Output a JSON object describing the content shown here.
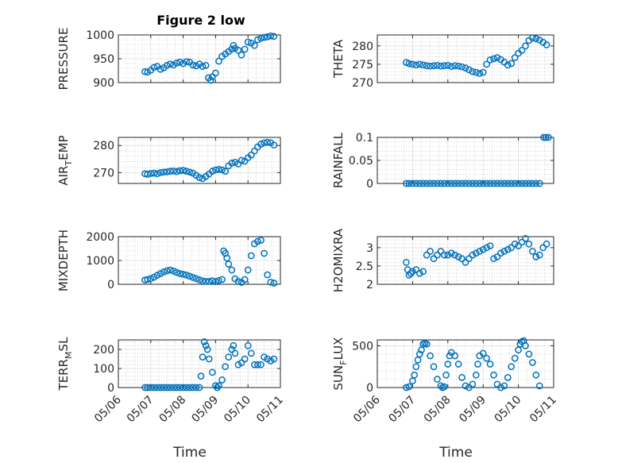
{
  "figure_title": "Figure 2 low",
  "marker_color": "#0072bd",
  "chart_data": [
    {
      "type": "scatter",
      "ylabel": "PRESSURE",
      "ylabel_sub": "",
      "ylabel_tail": "",
      "xlabel": "",
      "xticks": [
        "05/06",
        "05/07",
        "05/08",
        "05/09",
        "05/10",
        "05/11"
      ],
      "show_xticklabels": false,
      "ylim": [
        900,
        1000
      ],
      "yticks": [
        "900",
        "950",
        "1000"
      ],
      "ytick_values": [
        900,
        950,
        1000
      ],
      "grid": true,
      "x": [
        0.82,
        0.9,
        1.0,
        1.1,
        1.2,
        1.3,
        1.4,
        1.5,
        1.6,
        1.7,
        1.8,
        1.9,
        2.0,
        2.1,
        2.2,
        2.3,
        2.4,
        2.5,
        2.6,
        2.7,
        2.78,
        2.85,
        2.9,
        3.0,
        3.1,
        3.2,
        3.3,
        3.4,
        3.5,
        3.55,
        3.6,
        3.7,
        3.8,
        3.9,
        4.0,
        4.1,
        4.2,
        4.3,
        4.4,
        4.5,
        4.6,
        4.7,
        4.8
      ],
      "y": [
        923,
        922,
        926,
        932,
        934,
        928,
        931,
        936,
        939,
        937,
        941,
        943,
        940,
        944,
        943,
        937,
        935,
        939,
        934,
        936,
        910,
        905,
        912,
        920,
        945,
        955,
        960,
        965,
        970,
        978,
        972,
        968,
        958,
        970,
        985,
        983,
        978,
        990,
        993,
        995,
        996,
        998,
        997
      ]
    },
    {
      "type": "scatter",
      "ylabel": "THETA",
      "ylabel_sub": "",
      "ylabel_tail": "",
      "xlabel": "",
      "xticks": [
        "05/06",
        "05/07",
        "05/08",
        "05/09",
        "05/10",
        "05/11"
      ],
      "show_xticklabels": false,
      "ylim": [
        270,
        283
      ],
      "yticks": [
        "270",
        "275",
        "280"
      ],
      "ytick_values": [
        270,
        275,
        280
      ],
      "grid": true,
      "x": [
        0.82,
        0.9,
        1.0,
        1.1,
        1.2,
        1.3,
        1.4,
        1.5,
        1.6,
        1.7,
        1.8,
        1.9,
        2.0,
        2.1,
        2.2,
        2.3,
        2.4,
        2.5,
        2.6,
        2.7,
        2.8,
        2.9,
        3.0,
        3.1,
        3.2,
        3.3,
        3.4,
        3.5,
        3.6,
        3.7,
        3.8,
        3.9,
        4.0,
        4.1,
        4.2,
        4.3,
        4.4,
        4.5,
        4.6,
        4.7,
        4.8
      ],
      "y": [
        275.5,
        275.2,
        275.0,
        274.8,
        275.0,
        274.8,
        274.6,
        274.5,
        274.6,
        274.7,
        274.5,
        274.6,
        274.7,
        274.4,
        274.6,
        274.5,
        274.3,
        274.0,
        273.5,
        273.0,
        272.8,
        272.5,
        272.8,
        275.0,
        276.2,
        276.5,
        276.8,
        276.3,
        275.6,
        274.8,
        275.2,
        276.8,
        278.0,
        278.8,
        280.0,
        281.5,
        282.2,
        282.0,
        281.6,
        281.0,
        280.3
      ]
    },
    {
      "type": "scatter",
      "ylabel": "AIR",
      "ylabel_sub": "T",
      "ylabel_tail": "EMP",
      "xlabel": "",
      "xticks": [
        "05/06",
        "05/07",
        "05/08",
        "05/09",
        "05/10",
        "05/11"
      ],
      "show_xticklabels": false,
      "ylim": [
        266,
        283
      ],
      "yticks": [
        "270",
        "280"
      ],
      "ytick_values": [
        270,
        280
      ],
      "grid": true,
      "x": [
        0.82,
        0.9,
        1.0,
        1.1,
        1.2,
        1.3,
        1.4,
        1.5,
        1.6,
        1.7,
        1.8,
        1.9,
        2.0,
        2.1,
        2.2,
        2.3,
        2.4,
        2.5,
        2.6,
        2.7,
        2.8,
        2.9,
        3.0,
        3.1,
        3.2,
        3.3,
        3.4,
        3.5,
        3.6,
        3.7,
        3.8,
        3.9,
        4.0,
        4.1,
        4.2,
        4.3,
        4.4,
        4.5,
        4.6,
        4.7,
        4.8
      ],
      "y": [
        269.6,
        269.4,
        269.7,
        269.8,
        269.6,
        270.0,
        270.2,
        270.3,
        270.5,
        270.6,
        270.4,
        270.7,
        270.8,
        270.5,
        270.2,
        269.8,
        269.0,
        268.2,
        267.8,
        268.6,
        269.5,
        270.5,
        271.0,
        271.2,
        271.0,
        270.5,
        272.5,
        273.5,
        273.8,
        273.2,
        274.5,
        274.2,
        275.5,
        276.5,
        278.0,
        279.5,
        280.5,
        281.0,
        281.2,
        281.0,
        280.2
      ]
    },
    {
      "type": "scatter",
      "ylabel": "RAINFALL",
      "ylabel_sub": "",
      "ylabel_tail": "",
      "xlabel": "",
      "xticks": [
        "05/06",
        "05/07",
        "05/08",
        "05/09",
        "05/10",
        "05/11"
      ],
      "show_xticklabels": false,
      "ylim": [
        0,
        0.1
      ],
      "yticks": [
        "0",
        "0.05",
        "0.1"
      ],
      "ytick_values": [
        0,
        0.05,
        0.1
      ],
      "grid": true,
      "x": [
        0.82,
        0.9,
        1.0,
        1.1,
        1.2,
        1.3,
        1.4,
        1.5,
        1.6,
        1.7,
        1.8,
        1.9,
        2.0,
        2.1,
        2.2,
        2.3,
        2.4,
        2.5,
        2.6,
        2.7,
        2.8,
        2.9,
        3.0,
        3.1,
        3.2,
        3.3,
        3.4,
        3.5,
        3.6,
        3.7,
        3.8,
        3.9,
        4.0,
        4.1,
        4.2,
        4.3,
        4.4,
        4.5,
        4.6,
        4.72,
        4.78,
        4.85
      ],
      "y": [
        0,
        0,
        0,
        0,
        0,
        0,
        0,
        0,
        0,
        0,
        0,
        0,
        0,
        0,
        0,
        0,
        0,
        0,
        0,
        0,
        0,
        0,
        0,
        0,
        0,
        0,
        0,
        0,
        0,
        0,
        0,
        0,
        0,
        0,
        0,
        0,
        0,
        0,
        0,
        0.1,
        0.1,
        0.1
      ]
    },
    {
      "type": "scatter",
      "ylabel": "MIXDEPTH",
      "ylabel_sub": "",
      "ylabel_tail": "",
      "xlabel": "",
      "xticks": [
        "05/06",
        "05/07",
        "05/08",
        "05/09",
        "05/10",
        "05/11"
      ],
      "show_xticklabels": false,
      "ylim": [
        0,
        2000
      ],
      "yticks": [
        "0",
        "1000",
        "2000"
      ],
      "ytick_values": [
        0,
        1000,
        2000
      ],
      "grid": true,
      "x": [
        0.82,
        0.9,
        1.0,
        1.1,
        1.2,
        1.3,
        1.4,
        1.5,
        1.6,
        1.7,
        1.8,
        1.9,
        2.0,
        2.1,
        2.2,
        2.3,
        2.4,
        2.5,
        2.6,
        2.7,
        2.8,
        2.9,
        3.0,
        3.1,
        3.2,
        3.25,
        3.3,
        3.35,
        3.4,
        3.5,
        3.6,
        3.7,
        3.8,
        3.9,
        4.0,
        4.1,
        4.2,
        4.3,
        4.4,
        4.5,
        4.6,
        4.7,
        4.8
      ],
      "y": [
        180,
        200,
        240,
        300,
        380,
        450,
        520,
        570,
        600,
        560,
        500,
        450,
        420,
        390,
        340,
        290,
        240,
        190,
        140,
        120,
        120,
        150,
        110,
        160,
        200,
        1400,
        1300,
        1100,
        850,
        600,
        230,
        120,
        80,
        200,
        600,
        1200,
        1700,
        1800,
        1850,
        1300,
        400,
        90,
        50
      ]
    },
    {
      "type": "scatter",
      "ylabel": "H2OMIXRA",
      "ylabel_sub": "",
      "ylabel_tail": "",
      "xlabel": "",
      "xticks": [
        "05/06",
        "05/07",
        "05/08",
        "05/09",
        "05/10",
        "05/11"
      ],
      "show_xticklabels": false,
      "ylim": [
        2,
        3.3
      ],
      "yticks": [
        "2",
        "2.5",
        "3"
      ],
      "ytick_values": [
        2,
        2.5,
        3
      ],
      "grid": true,
      "x": [
        0.82,
        0.86,
        0.9,
        0.95,
        1.0,
        1.1,
        1.2,
        1.3,
        1.4,
        1.5,
        1.6,
        1.7,
        1.8,
        1.9,
        2.0,
        2.1,
        2.2,
        2.3,
        2.4,
        2.5,
        2.6,
        2.7,
        2.8,
        2.9,
        3.0,
        3.1,
        3.2,
        3.3,
        3.4,
        3.5,
        3.6,
        3.7,
        3.8,
        3.9,
        4.0,
        4.1,
        4.2,
        4.3,
        4.4,
        4.5,
        4.6,
        4.7,
        4.8
      ],
      "y": [
        2.6,
        2.4,
        2.25,
        2.3,
        2.35,
        2.4,
        2.3,
        2.35,
        2.8,
        2.9,
        2.7,
        2.8,
        2.9,
        2.8,
        2.8,
        2.85,
        2.8,
        2.75,
        2.7,
        2.6,
        2.7,
        2.8,
        2.85,
        2.9,
        2.95,
        3.0,
        3.05,
        2.7,
        2.75,
        2.85,
        2.9,
        2.95,
        3.0,
        3.1,
        3.05,
        3.15,
        3.25,
        3.1,
        2.9,
        2.75,
        2.8,
        3.0,
        3.1
      ]
    },
    {
      "type": "scatter",
      "ylabel": "TERR",
      "ylabel_sub": "M",
      "ylabel_tail": "SL",
      "xlabel": "Time",
      "xticks": [
        "05/06",
        "05/07",
        "05/08",
        "05/09",
        "05/10",
        "05/11"
      ],
      "show_xticklabels": true,
      "ylim": [
        0,
        250
      ],
      "yticks": [
        "0",
        "100",
        "200"
      ],
      "ytick_values": [
        0,
        100,
        200
      ],
      "grid": true,
      "x": [
        0.82,
        0.9,
        1.0,
        1.1,
        1.2,
        1.3,
        1.4,
        1.5,
        1.6,
        1.7,
        1.8,
        1.9,
        2.0,
        2.1,
        2.2,
        2.3,
        2.4,
        2.5,
        2.55,
        2.6,
        2.65,
        2.7,
        2.75,
        2.8,
        2.9,
        3.0,
        3.05,
        3.1,
        3.2,
        3.3,
        3.4,
        3.5,
        3.55,
        3.6,
        3.7,
        3.8,
        3.9,
        4.0,
        4.1,
        4.2,
        4.3,
        4.4,
        4.5,
        4.6,
        4.7,
        4.8
      ],
      "y": [
        0,
        0,
        0,
        0,
        0,
        0,
        0,
        0,
        0,
        0,
        0,
        0,
        0,
        0,
        0,
        0,
        0,
        0,
        60,
        160,
        240,
        220,
        200,
        150,
        80,
        10,
        0,
        10,
        40,
        110,
        160,
        200,
        220,
        180,
        120,
        130,
        150,
        220,
        180,
        120,
        120,
        120,
        160,
        150,
        140,
        150
      ]
    },
    {
      "type": "scatter",
      "ylabel": "SUN",
      "ylabel_sub": "F",
      "ylabel_tail": "LUX",
      "xlabel": "Time",
      "xticks": [
        "05/06",
        "05/07",
        "05/08",
        "05/09",
        "05/10",
        "05/11"
      ],
      "show_xticklabels": true,
      "ylim": [
        0,
        570
      ],
      "yticks": [
        "0",
        "500"
      ],
      "ytick_values": [
        0,
        500
      ],
      "grid": true,
      "x": [
        0.82,
        0.9,
        1.0,
        1.05,
        1.1,
        1.15,
        1.2,
        1.25,
        1.3,
        1.35,
        1.4,
        1.5,
        1.6,
        1.7,
        1.8,
        1.85,
        1.9,
        1.95,
        2.0,
        2.05,
        2.1,
        2.2,
        2.3,
        2.4,
        2.5,
        2.6,
        2.7,
        2.8,
        2.85,
        2.9,
        3.0,
        3.1,
        3.2,
        3.3,
        3.4,
        3.5,
        3.6,
        3.7,
        3.8,
        3.9,
        4.0,
        4.05,
        4.1,
        4.15,
        4.2,
        4.3,
        4.4,
        4.5,
        4.6
      ],
      "y": [
        0,
        10,
        80,
        150,
        250,
        330,
        400,
        450,
        520,
        530,
        520,
        380,
        250,
        100,
        20,
        0,
        10,
        150,
        280,
        380,
        420,
        380,
        280,
        120,
        20,
        0,
        40,
        150,
        280,
        380,
        410,
        350,
        280,
        150,
        40,
        0,
        20,
        120,
        250,
        350,
        450,
        520,
        550,
        560,
        500,
        400,
        300,
        150,
        20
      ]
    }
  ]
}
